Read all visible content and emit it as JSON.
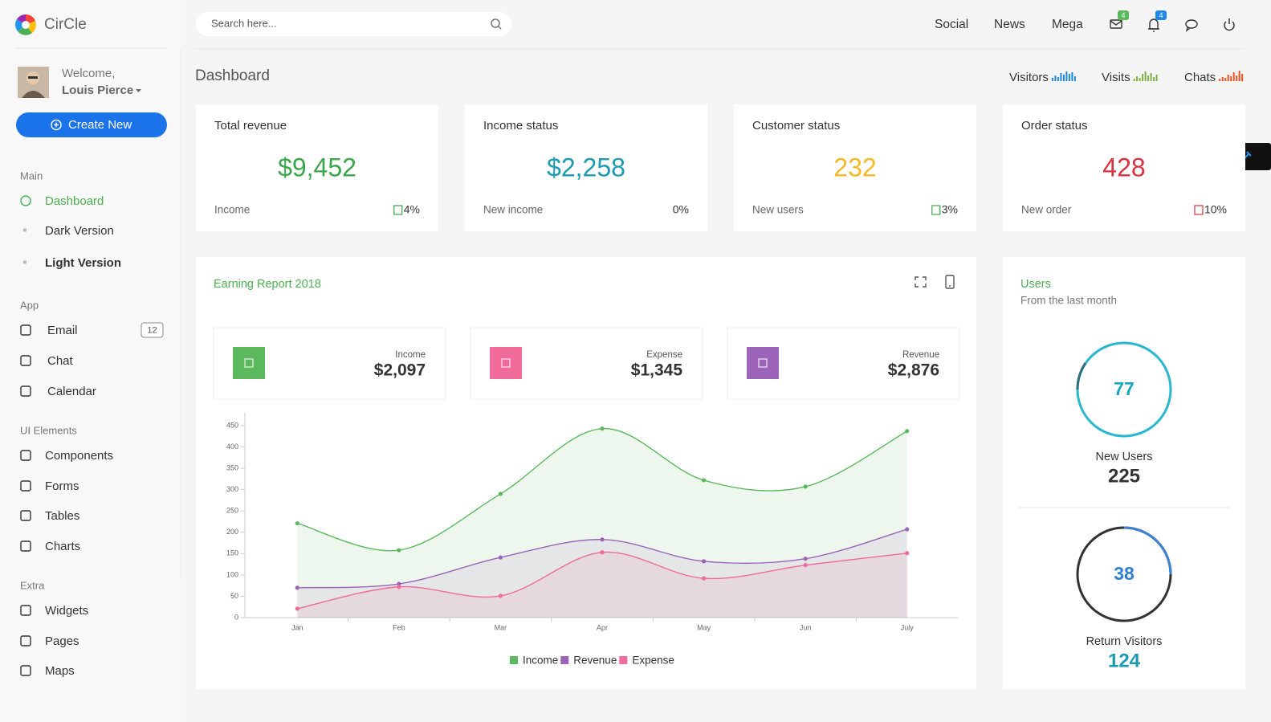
{
  "brand": "CirCle",
  "search": {
    "placeholder": "Search here..."
  },
  "top_nav": [
    "Social",
    "News",
    "Mega"
  ],
  "notifications": {
    "mail": "4",
    "bell": "4"
  },
  "user": {
    "greeting": "Welcome,",
    "name": "Louis Pierce"
  },
  "create_button": "Create New",
  "sidebar": [
    {
      "heading": "Main",
      "items": [
        {
          "label": "Dashboard"
        },
        {
          "label": "Dark Version"
        },
        {
          "label": "Light Version"
        }
      ]
    },
    {
      "heading": "App",
      "items": [
        {
          "label": "Email",
          "badge": "12"
        },
        {
          "label": "Chat"
        },
        {
          "label": "Calendar"
        }
      ]
    },
    {
      "heading": "UI Elements",
      "items": [
        {
          "label": "Components"
        },
        {
          "label": "Forms"
        },
        {
          "label": "Tables"
        },
        {
          "label": "Charts"
        }
      ]
    },
    {
      "heading": "Extra",
      "items": [
        {
          "label": "Widgets"
        },
        {
          "label": "Pages"
        },
        {
          "label": "Maps"
        }
      ]
    }
  ],
  "page_title": "Dashboard",
  "header_stats": [
    "Visitors",
    "Visits",
    "Chats"
  ],
  "stat_cards": [
    {
      "title": "Total revenue",
      "value": "$9,452",
      "label": "Income",
      "change": "4%",
      "color": "#3ca64a"
    },
    {
      "title": "Income status",
      "value": "$2,258",
      "label": "New income",
      "change": "0%",
      "color": "#1b9bb2"
    },
    {
      "title": "Customer status",
      "value": "232",
      "label": "New users",
      "change": "3%",
      "color": "#f8b826"
    },
    {
      "title": "Order status",
      "value": "428",
      "label": "New order",
      "change": "10%",
      "color": "#d9313f"
    }
  ],
  "earning_report": {
    "title": "Earning Report 2018",
    "summary": [
      {
        "label": "Income",
        "value": "$2,097",
        "color": "#5cb85c"
      },
      {
        "label": "Expense",
        "value": "$1,345",
        "color": "#f06a9a"
      },
      {
        "label": "Revenue",
        "value": "$2,876",
        "color": "#9b64b8"
      }
    ]
  },
  "chart_data": {
    "type": "area",
    "categories": [
      "Jan",
      "Feb",
      "Mar",
      "Apr",
      "May",
      "Jun",
      "July"
    ],
    "series": [
      {
        "name": "Income",
        "color": "#5cb85c",
        "values": [
          221,
          158,
          290,
          443,
          322,
          307,
          437
        ]
      },
      {
        "name": "Revenue",
        "color": "#9b64b8",
        "values": [
          70,
          79,
          141,
          183,
          132,
          138,
          207
        ]
      },
      {
        "name": "Expense",
        "color": "#f06a9a",
        "values": [
          21,
          72,
          51,
          153,
          92,
          123,
          151
        ]
      }
    ],
    "ylim": [
      0,
      480
    ],
    "yticks": [
      0,
      50,
      100,
      150,
      200,
      250,
      300,
      350,
      400,
      450
    ],
    "grid": false,
    "legend": "bottom"
  },
  "users": {
    "title": "Users",
    "subtitle": "From the last month",
    "gauges": [
      {
        "value": "77",
        "label": "New Users",
        "total": "225"
      },
      {
        "value": "38",
        "label": "Return Visitors",
        "total": "124"
      }
    ]
  }
}
